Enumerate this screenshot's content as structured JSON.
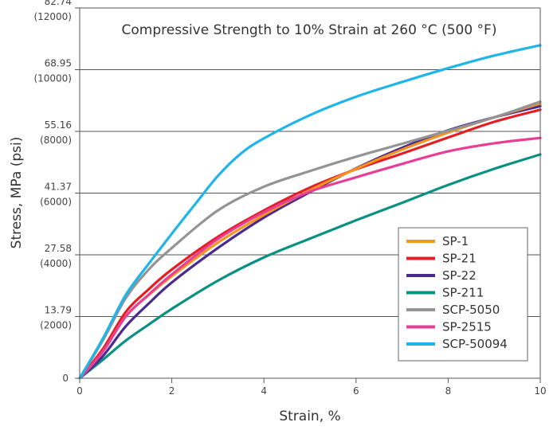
{
  "chart_data": {
    "type": "line",
    "title": "Compressive Strength to 10% Strain at 260 °C (500 °F)",
    "xlabel": "Strain, %",
    "ylabel": "Stress, MPa (psi)",
    "xlim": [
      0,
      10
    ],
    "ylim": [
      0,
      82.74
    ],
    "x_ticks": [
      {
        "value": 0,
        "label": "0"
      },
      {
        "value": 2,
        "label": "2"
      },
      {
        "value": 4,
        "label": "4"
      },
      {
        "value": 6,
        "label": "6"
      },
      {
        "value": 8,
        "label": "8"
      },
      {
        "value": 10,
        "label": "10"
      }
    ],
    "y_ticks": [
      {
        "value": 0,
        "mpa": "0",
        "psi": ""
      },
      {
        "value": 13.79,
        "mpa": "13.79",
        "psi": "(2000)"
      },
      {
        "value": 27.58,
        "mpa": "27.58",
        "psi": "(4000)"
      },
      {
        "value": 41.37,
        "mpa": "41.37",
        "psi": "(6000)"
      },
      {
        "value": 55.16,
        "mpa": "55.16",
        "psi": "(8000)"
      },
      {
        "value": 68.95,
        "mpa": "68.95",
        "psi": "(10000)"
      },
      {
        "value": 82.74,
        "mpa": "82.74",
        "psi": "(12000)"
      }
    ],
    "grid": "horizontal",
    "legend_position": "bottom-right",
    "series": [
      {
        "name": "SP-1",
        "color": "#f7941d",
        "x": [
          0,
          0.5,
          1,
          1.5,
          2,
          3,
          4,
          5,
          6,
          7,
          8,
          9,
          10
        ],
        "y": [
          0,
          5.9,
          13.8,
          18.6,
          22.8,
          30.3,
          36.5,
          42.0,
          46.8,
          51.1,
          54.9,
          58.3,
          61.4
        ]
      },
      {
        "name": "SP-21",
        "color": "#e31e24",
        "x": [
          0,
          0.5,
          1,
          1.5,
          2,
          3,
          4,
          5,
          6,
          7,
          8,
          9,
          10
        ],
        "y": [
          0,
          6.5,
          14.8,
          19.9,
          24.3,
          31.6,
          37.5,
          42.6,
          46.7,
          50.2,
          53.8,
          57.3,
          60.0
        ]
      },
      {
        "name": "SP-22",
        "color": "#4b2a8f",
        "x": [
          0,
          0.5,
          1,
          1.5,
          2,
          3,
          4,
          5,
          6,
          7,
          8,
          9,
          10
        ],
        "y": [
          0,
          4.9,
          11.6,
          16.7,
          21.4,
          29.1,
          35.9,
          41.6,
          46.9,
          51.5,
          55.4,
          58.3,
          60.8
        ]
      },
      {
        "name": "SP-211",
        "color": "#0b9184",
        "x": [
          0,
          0.5,
          1,
          1.5,
          2,
          3,
          4,
          5,
          6,
          7,
          8,
          9,
          10
        ],
        "y": [
          0,
          4.1,
          8.4,
          12.0,
          15.5,
          21.8,
          27.0,
          31.2,
          35.3,
          39.2,
          43.2,
          46.8,
          50.0
        ]
      },
      {
        "name": "SCP-5050",
        "color": "#949494",
        "x": [
          0,
          0.5,
          1,
          1.5,
          2,
          3,
          4,
          5,
          6,
          7,
          8,
          9,
          10
        ],
        "y": [
          0,
          8.4,
          17.9,
          24.3,
          29.1,
          37.5,
          42.8,
          46.3,
          49.5,
          52.4,
          55.3,
          58.3,
          61.8
        ]
      },
      {
        "name": "SP-2515",
        "color": "#e83e96",
        "x": [
          0,
          0.5,
          1,
          1.5,
          2,
          3,
          4,
          5,
          6,
          7,
          8,
          9,
          10
        ],
        "y": [
          0,
          5.9,
          13.8,
          18.7,
          23.2,
          31.1,
          37.1,
          41.7,
          44.9,
          47.9,
          50.7,
          52.5,
          53.7
        ]
      },
      {
        "name": "SCP-50094",
        "color": "#1fb5e8",
        "x": [
          0,
          0.5,
          1,
          1.5,
          2,
          2.5,
          3,
          3.5,
          4,
          5,
          6,
          7,
          8,
          9,
          10
        ],
        "y": [
          0,
          8.8,
          18.6,
          25.6,
          32.3,
          38.8,
          45.2,
          50.2,
          53.6,
          58.8,
          62.9,
          66.2,
          69.3,
          72.1,
          74.4
        ]
      }
    ]
  }
}
